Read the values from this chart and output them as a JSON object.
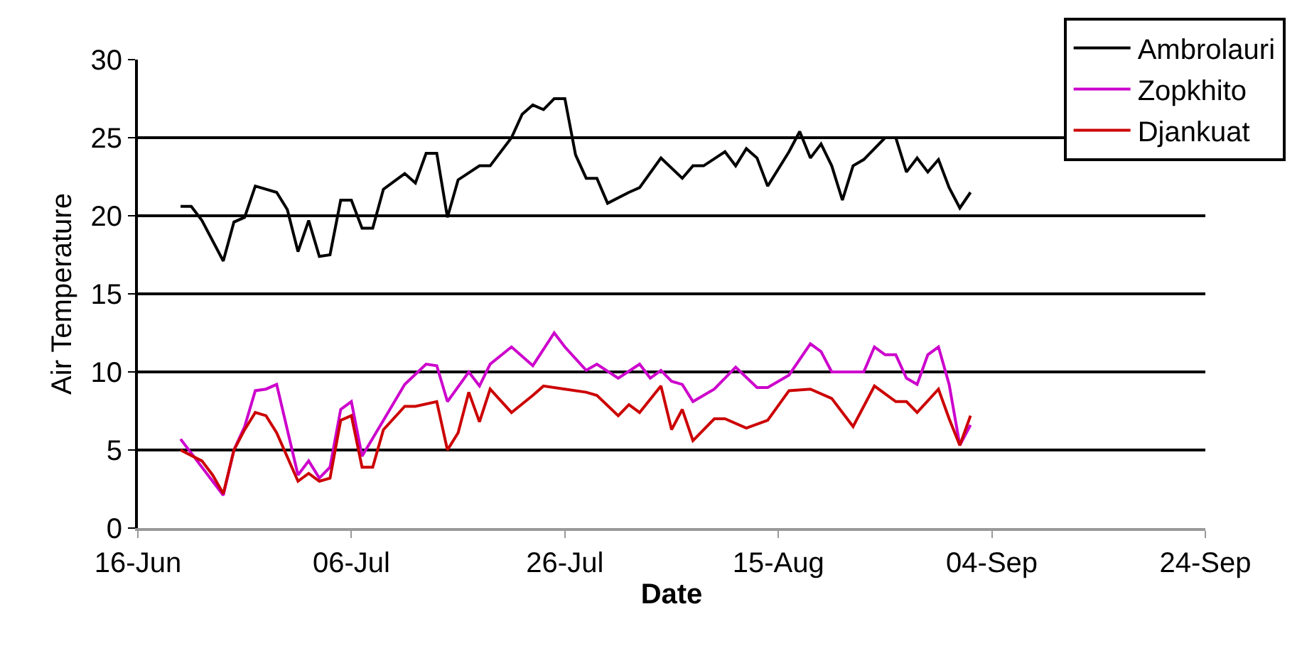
{
  "chart_data": {
    "type": "line",
    "xlabel": "Date",
    "ylabel": "Air Temperature",
    "xlim": [
      "--06-16",
      "--09-24"
    ],
    "xticks": [
      {
        "value": "--06-16",
        "label": "16-Jun"
      },
      {
        "value": "--07-06",
        "label": "06-Jul"
      },
      {
        "value": "--07-26",
        "label": "26-Jul"
      },
      {
        "value": "--08-15",
        "label": "15-Aug"
      },
      {
        "value": "--09-04",
        "label": "04-Sep"
      },
      {
        "value": "--09-24",
        "label": "24-Sep"
      }
    ],
    "ylim": [
      0,
      30
    ],
    "yticks": [
      0,
      5,
      10,
      15,
      20,
      25,
      30
    ],
    "grid": "y",
    "legend": "top right",
    "marker": "none",
    "line_style": "solid",
    "series": [
      {
        "name": "Ambrolauri",
        "color": "#000000",
        "x": [
          "--06-20",
          "--06-21",
          "--06-22",
          "--06-24",
          "--06-25",
          "--06-26",
          "--06-27",
          "--06-29",
          "--06-30",
          "--07-01",
          "--07-02",
          "--07-03",
          "--07-04",
          "--07-05",
          "--07-06",
          "--07-07",
          "--07-08",
          "--07-09",
          "--07-11",
          "--07-12",
          "--07-13",
          "--07-14",
          "--07-15",
          "--07-16",
          "--07-18",
          "--07-19",
          "--07-21",
          "--07-22",
          "--07-23",
          "--07-24",
          "--07-25",
          "--07-26",
          "--07-27",
          "--07-28",
          "--07-29",
          "--07-30",
          "--08-01",
          "--08-02",
          "--08-04",
          "--08-06",
          "--08-07",
          "--08-08",
          "--08-10",
          "--08-11",
          "--08-12",
          "--08-13",
          "--08-14",
          "--08-16",
          "--08-17",
          "--08-18",
          "--08-19",
          "--08-20",
          "--08-21",
          "--08-22",
          "--08-23",
          "--08-25",
          "--08-26",
          "--08-27",
          "--08-28",
          "--08-29",
          "--08-30",
          "--08-31",
          "--09-01",
          "--09-02"
        ],
        "values": [
          20.6,
          20.6,
          19.7,
          17.1,
          19.6,
          19.9,
          21.9,
          21.5,
          20.4,
          17.7,
          19.7,
          17.4,
          17.5,
          21.0,
          21.0,
          19.2,
          19.2,
          21.7,
          22.7,
          22.1,
          24.0,
          24.0,
          19.9,
          22.3,
          23.2,
          23.2,
          25.0,
          26.5,
          27.1,
          26.8,
          27.5,
          27.5,
          23.9,
          22.4,
          22.4,
          20.8,
          21.5,
          21.8,
          23.7,
          22.4,
          23.2,
          23.2,
          24.1,
          23.2,
          24.3,
          23.7,
          21.9,
          24.1,
          25.4,
          23.7,
          24.6,
          23.2,
          21.0,
          23.2,
          23.6,
          25.0,
          25.0,
          22.8,
          23.7,
          22.8,
          23.6,
          21.8,
          20.5,
          21.5
        ]
      },
      {
        "name": "Zopkhito",
        "color": "#cc00cc",
        "x": [
          "--06-20",
          "--06-24",
          "--06-25",
          "--06-26",
          "--06-27",
          "--06-28",
          "--06-29",
          "--07-01",
          "--07-02",
          "--07-03",
          "--07-04",
          "--07-05",
          "--07-06",
          "--07-07",
          "--07-09",
          "--07-11",
          "--07-13",
          "--07-14",
          "--07-15",
          "--07-17",
          "--07-18",
          "--07-19",
          "--07-21",
          "--07-23",
          "--07-25",
          "--07-26",
          "--07-28",
          "--07-29",
          "--07-31",
          "--08-02",
          "--08-03",
          "--08-04",
          "--08-05",
          "--08-06",
          "--08-07",
          "--08-09",
          "--08-11",
          "--08-13",
          "--08-14",
          "--08-16",
          "--08-18",
          "--08-19",
          "--08-20",
          "--08-23",
          "--08-24",
          "--08-25",
          "--08-26",
          "--08-27",
          "--08-28",
          "--08-29",
          "--08-30",
          "--08-31",
          "--09-01",
          "--09-02"
        ],
        "values": [
          5.7,
          2.1,
          5.0,
          6.5,
          8.8,
          8.9,
          9.2,
          3.4,
          4.3,
          3.2,
          3.9,
          7.6,
          8.1,
          4.6,
          6.9,
          9.2,
          10.5,
          10.4,
          8.1,
          10.0,
          9.1,
          10.5,
          11.6,
          10.4,
          12.5,
          11.6,
          10.1,
          10.5,
          9.6,
          10.5,
          9.6,
          10.1,
          9.4,
          9.2,
          8.1,
          8.9,
          10.3,
          9.0,
          9.0,
          9.8,
          11.8,
          11.3,
          10.0,
          10.0,
          11.6,
          11.1,
          11.1,
          9.6,
          9.2,
          11.1,
          11.6,
          9.2,
          5.3,
          6.6
        ]
      },
      {
        "name": "Djankuat",
        "color": "#cc0000",
        "x": [
          "--06-20",
          "--06-22",
          "--06-23",
          "--06-24",
          "--06-25",
          "--06-26",
          "--06-27",
          "--06-28",
          "--06-29",
          "--07-01",
          "--07-02",
          "--07-03",
          "--07-04",
          "--07-05",
          "--07-06",
          "--07-07",
          "--07-08",
          "--07-09",
          "--07-11",
          "--07-12",
          "--07-14",
          "--07-15",
          "--07-16",
          "--07-17",
          "--07-18",
          "--07-19",
          "--07-21",
          "--07-23",
          "--07-24",
          "--07-26",
          "--07-28",
          "--07-29",
          "--07-31",
          "--08-01",
          "--08-02",
          "--08-04",
          "--08-05",
          "--08-06",
          "--08-07",
          "--08-09",
          "--08-10",
          "--08-12",
          "--08-14",
          "--08-16",
          "--08-18",
          "--08-20",
          "--08-22",
          "--08-24",
          "--08-26",
          "--08-27",
          "--08-28",
          "--08-30",
          "--08-31",
          "--09-01",
          "--09-02"
        ],
        "values": [
          5.0,
          4.3,
          3.4,
          2.2,
          5.0,
          6.3,
          7.4,
          7.2,
          6.1,
          3.0,
          3.5,
          3.0,
          3.2,
          6.9,
          7.2,
          3.9,
          3.9,
          6.3,
          7.8,
          7.8,
          8.1,
          5.0,
          6.1,
          8.7,
          6.8,
          8.9,
          7.4,
          8.5,
          9.1,
          8.9,
          8.7,
          8.5,
          7.2,
          7.9,
          7.4,
          9.1,
          6.3,
          7.6,
          5.6,
          7.0,
          7.0,
          6.4,
          6.9,
          8.8,
          8.9,
          8.3,
          6.5,
          9.1,
          8.1,
          8.1,
          7.4,
          8.9,
          7.0,
          5.3,
          7.2
        ]
      }
    ]
  }
}
